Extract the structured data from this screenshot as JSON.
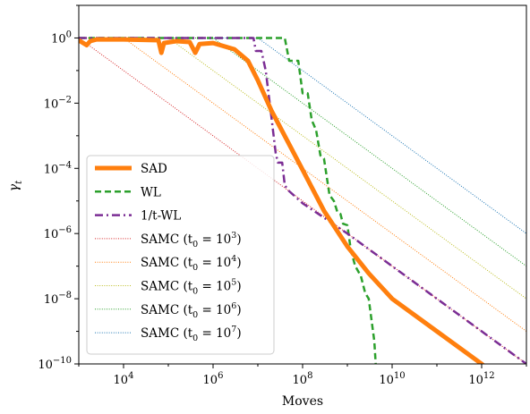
{
  "chart_data": {
    "type": "line",
    "title": "",
    "xlabel": "Moves",
    "ylabel": "γ_t",
    "xscale": "log",
    "yscale": "log",
    "xlim": [
      1000,
      10000000000000.0
    ],
    "ylim": [
      1e-10,
      10
    ],
    "grid": false,
    "legend_position": "lower-left",
    "x_tick_labels": [
      {
        "value": 10000,
        "base": "10",
        "exp": "4"
      },
      {
        "value": 1000000,
        "base": "10",
        "exp": "6"
      },
      {
        "value": 100000000,
        "base": "10",
        "exp": "8"
      },
      {
        "value": 10000000000,
        "base": "10",
        "exp": "10"
      },
      {
        "value": 1000000000000,
        "base": "10",
        "exp": "12"
      }
    ],
    "y_tick_labels": [
      {
        "value": 1,
        "base": "10",
        "exp": "0"
      },
      {
        "value": 0.01,
        "base": "10",
        "exp": "−2"
      },
      {
        "value": 0.0001,
        "base": "10",
        "exp": "−4"
      },
      {
        "value": 1e-06,
        "base": "10",
        "exp": "−6"
      },
      {
        "value": 1e-08,
        "base": "10",
        "exp": "−8"
      },
      {
        "value": 1e-10,
        "base": "10",
        "exp": "−10"
      }
    ],
    "series": [
      {
        "name": "SAD",
        "color": "#ff7f0e",
        "style": "solid",
        "width": 5,
        "points": [
          [
            1000,
            0.85
          ],
          [
            1500,
            0.6
          ],
          [
            1800,
            0.8
          ],
          [
            2500,
            0.9
          ],
          [
            10000.0,
            0.9
          ],
          [
            60000.0,
            0.85
          ],
          [
            70000.0,
            0.35
          ],
          [
            80000.0,
            0.7
          ],
          [
            150000.0,
            0.8
          ],
          [
            300000.0,
            0.75
          ],
          [
            400000.0,
            0.35
          ],
          [
            500000.0,
            0.65
          ],
          [
            1000000.0,
            0.7
          ],
          [
            3000000.0,
            0.45
          ],
          [
            6000000.0,
            0.2
          ],
          [
            10000000.0,
            0.05
          ],
          [
            20000000.0,
            0.006
          ],
          [
            50000000.0,
            0.00055
          ],
          [
            100000000.0,
            9e-05
          ],
          [
            300000000.0,
            5e-06
          ],
          [
            1000000000.0,
            4e-07
          ],
          [
            3000000000.0,
            6e-08
          ],
          [
            10000000000.0,
            1e-08
          ],
          [
            100000000000.0,
            1e-09
          ],
          [
            1000000000000.0,
            1e-10
          ],
          [
            5000000000000.0,
            1.5e-11
          ]
        ]
      },
      {
        "name": "WL",
        "color": "#2ca02c",
        "style": "dashed",
        "width": 2.5,
        "points": [
          [
            1000,
            1
          ],
          [
            40000000.0,
            1
          ],
          [
            50000000.0,
            0.2
          ],
          [
            80000000.0,
            0.2
          ],
          [
            100000000.0,
            0.02
          ],
          [
            130000000.0,
            0.02
          ],
          [
            160000000.0,
            0.003
          ],
          [
            200000000.0,
            0.0015
          ],
          [
            250000000.0,
            0.00025
          ],
          [
            300000000.0,
            0.0002
          ],
          [
            400000000.0,
            1.5e-05
          ],
          [
            500000000.0,
            1e-05
          ],
          [
            600000000.0,
            4.5e-06
          ],
          [
            700000000.0,
            4e-06
          ],
          [
            800000000.0,
            2e-06
          ],
          [
            1000000000.0,
            1.8e-06
          ],
          [
            1200000000.0,
            3e-07
          ],
          [
            1500000000.0,
            1e-07
          ],
          [
            2000000000.0,
            5e-08
          ],
          [
            2500000000.0,
            1.5e-08
          ],
          [
            3000000000.0,
            1e-08
          ],
          [
            3500000000.0,
            2e-09
          ],
          [
            4000000000.0,
            5e-10
          ],
          [
            4300000000.0,
            1e-10
          ]
        ]
      },
      {
        "name": "1/t-WL",
        "color": "#7b2d94",
        "style": "dashdot",
        "width": 2.5,
        "points": [
          [
            1000,
            1
          ],
          [
            8000000.0,
            1
          ],
          [
            9000000.0,
            0.4
          ],
          [
            12000000.0,
            0.4
          ],
          [
            15000000.0,
            0.1
          ],
          [
            20000000.0,
            0.004
          ],
          [
            25000000.0,
            0.0003
          ],
          [
            28000000.0,
            0.00015
          ],
          [
            35000000.0,
            0.00015
          ],
          [
            40000000.0,
            3e-05
          ],
          [
            50000000.0,
            2e-05
          ],
          [
            100000000.0,
            8.5e-06
          ],
          [
            1000000000.0,
            1e-06
          ],
          [
            10000000000.0,
            1e-07
          ],
          [
            100000000000.0,
            1e-08
          ],
          [
            1000000000000.0,
            1e-09
          ],
          [
            10000000000000.0,
            1e-10
          ]
        ]
      },
      {
        "name": "SAMC (t0 = 10^3)",
        "color": "#d62728",
        "style": "dotted",
        "width": 1,
        "t0": 1000
      },
      {
        "name": "SAMC (t0 = 10^4)",
        "color": "#ff7f0e",
        "style": "dotted",
        "width": 1,
        "t0": 10000
      },
      {
        "name": "SAMC (t0 = 10^5)",
        "color": "#bcbd22",
        "style": "dotted",
        "width": 1,
        "t0": 100000
      },
      {
        "name": "SAMC (t0 = 10^6)",
        "color": "#2ca02c",
        "style": "dotted",
        "width": 1,
        "t0": 1000000
      },
      {
        "name": "SAMC (t0 = 10^7)",
        "color": "#1f77b4",
        "style": "dotted",
        "width": 1,
        "t0": 10000000
      }
    ]
  },
  "legend": [
    {
      "text": "SAD",
      "sub": ""
    },
    {
      "text": "WL",
      "sub": ""
    },
    {
      "text": "1/t-WL",
      "sub": ""
    },
    {
      "text": "SAMC (t",
      "sub": "0",
      "exprpre": " = 10",
      "exp": "3",
      "post": ")"
    },
    {
      "text": "SAMC (t",
      "sub": "0",
      "exprpre": " = 10",
      "exp": "4",
      "post": ")"
    },
    {
      "text": "SAMC (t",
      "sub": "0",
      "exprpre": " = 10",
      "exp": "5",
      "post": ")"
    },
    {
      "text": "SAMC (t",
      "sub": "0",
      "exprpre": " = 10",
      "exp": "6",
      "post": ")"
    },
    {
      "text": "SAMC (t",
      "sub": "0",
      "exprpre": " = 10",
      "exp": "7",
      "post": ")"
    }
  ]
}
